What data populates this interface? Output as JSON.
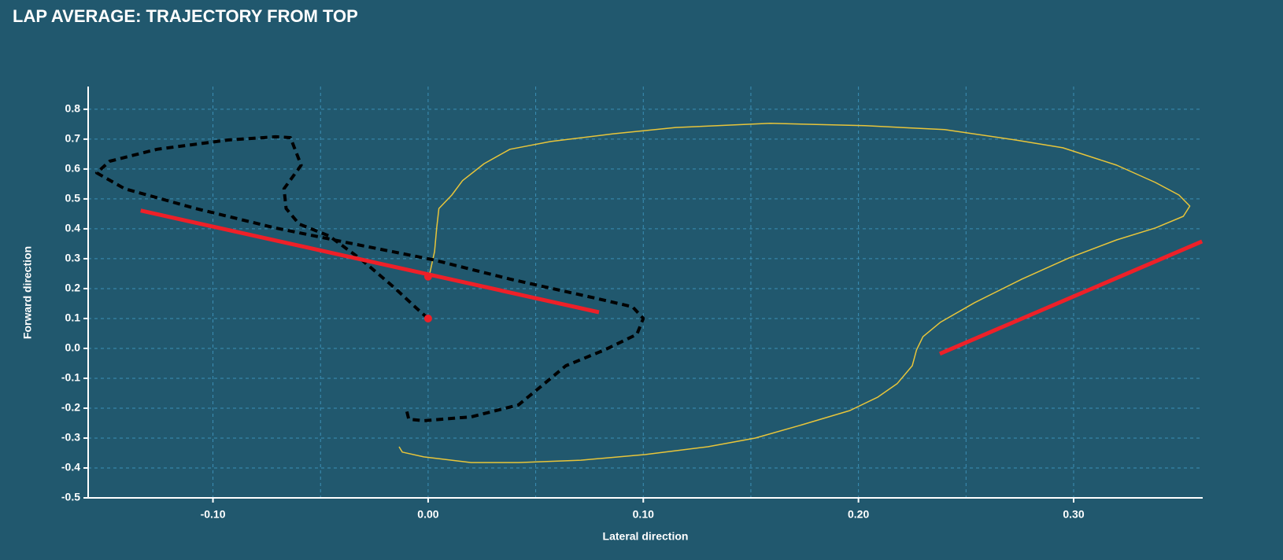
{
  "chart_data": {
    "type": "line",
    "title": "LAP AVERAGE: TRAJECTORY FROM TOP",
    "x_label": "Lateral direction",
    "y_label": "Forward direction",
    "xlim": [
      -0.158,
      0.36
    ],
    "ylim": [
      -0.5,
      0.876
    ],
    "xticks": [
      {
        "value": -0.1,
        "label": "-0.10"
      },
      {
        "value": 0,
        "label": "0.00"
      },
      {
        "value": 0.1,
        "label": "0.10"
      },
      {
        "value": 0.2,
        "label": "0.20"
      },
      {
        "value": 0.3,
        "label": "0.30"
      }
    ],
    "yticks": [
      {
        "value": -0.5,
        "label": "-0.5"
      },
      {
        "value": -0.4,
        "label": "-0.4"
      },
      {
        "value": -0.3,
        "label": "-0.3"
      },
      {
        "value": -0.2,
        "label": "-0.2"
      },
      {
        "value": -0.1,
        "label": "-0.1"
      },
      {
        "value": 0,
        "label": "0.0"
      },
      {
        "value": 0.1,
        "label": "0.1"
      },
      {
        "value": 0.2,
        "label": "0.2"
      },
      {
        "value": 0.3,
        "label": "0.3"
      },
      {
        "value": 0.4,
        "label": "0.4"
      },
      {
        "value": 0.5,
        "label": "0.5"
      },
      {
        "value": 0.6,
        "label": "0.6"
      },
      {
        "value": 0.7,
        "label": "0.7"
      },
      {
        "value": 0.8,
        "label": "0.8"
      }
    ],
    "grid": true,
    "series": [
      {
        "color": "#e8c53a",
        "style": "solid",
        "width": 1.5,
        "x": [
          -0.0135,
          -0.012,
          -0.002,
          0.02,
          0.042,
          0.071,
          0.101,
          0.13,
          0.152,
          0.174,
          0.196,
          0.209,
          0.218,
          0.225,
          0.227,
          0.23,
          0.238,
          0.254,
          0.276,
          0.298,
          0.32,
          0.338,
          0.351,
          0.354,
          0.349,
          0.338,
          0.32,
          0.295,
          0.273,
          0.24,
          0.203,
          0.159,
          0.115,
          0.086,
          0.057,
          0.038,
          0.026,
          0.016,
          0.011,
          0.005,
          0.004,
          0.003,
          0.001,
          0
        ],
        "y": [
          -0.329,
          -0.347,
          -0.363,
          -0.382,
          -0.382,
          -0.374,
          -0.355,
          -0.329,
          -0.3,
          -0.255,
          -0.208,
          -0.163,
          -0.118,
          -0.058,
          -0.005,
          0.039,
          0.087,
          0.153,
          0.232,
          0.303,
          0.363,
          0.403,
          0.442,
          0.476,
          0.513,
          0.555,
          0.613,
          0.671,
          0.697,
          0.732,
          0.745,
          0.753,
          0.739,
          0.718,
          0.692,
          0.666,
          0.618,
          0.561,
          0.513,
          0.468,
          0.403,
          0.324,
          0.258,
          0.232
        ]
      },
      {
        "color": "#000000",
        "style": "dashed",
        "width": 4,
        "x": [
          0,
          -0.005,
          -0.016,
          -0.031,
          -0.046,
          -0.06,
          -0.066,
          -0.067,
          -0.059,
          -0.064,
          -0.071,
          -0.093,
          -0.126,
          -0.148,
          -0.154,
          -0.141,
          -0.108,
          -0.071,
          -0.035,
          0.002,
          0.038,
          0.079,
          0.095,
          0.1,
          0.097,
          0.082,
          0.064,
          0.053,
          0.042,
          0.02,
          -0.002,
          -0.009,
          -0.01
        ],
        "y": [
          0.1,
          0.132,
          0.205,
          0.297,
          0.376,
          0.416,
          0.468,
          0.534,
          0.613,
          0.705,
          0.708,
          0.697,
          0.666,
          0.626,
          0.587,
          0.534,
          0.468,
          0.403,
          0.35,
          0.297,
          0.232,
          0.166,
          0.139,
          0.1,
          0.047,
          -0.005,
          -0.058,
          -0.124,
          -0.189,
          -0.229,
          -0.242,
          -0.237,
          -0.208
        ]
      },
      {
        "color": "#ee2028",
        "style": "solid",
        "width": 5,
        "x": [
          -0.1336,
          0.0794
        ],
        "y": [
          0.461,
          0.121
        ]
      },
      {
        "color": "#ee2028",
        "style": "solid",
        "width": 5,
        "x": [
          0.2378,
          0.3597
        ],
        "y": [
          -0.018,
          0.358
        ]
      },
      {
        "color": "#ee2028",
        "style": "points",
        "width": 5,
        "x": [
          0,
          0
        ],
        "y": [
          0.1,
          0.24
        ]
      }
    ]
  }
}
